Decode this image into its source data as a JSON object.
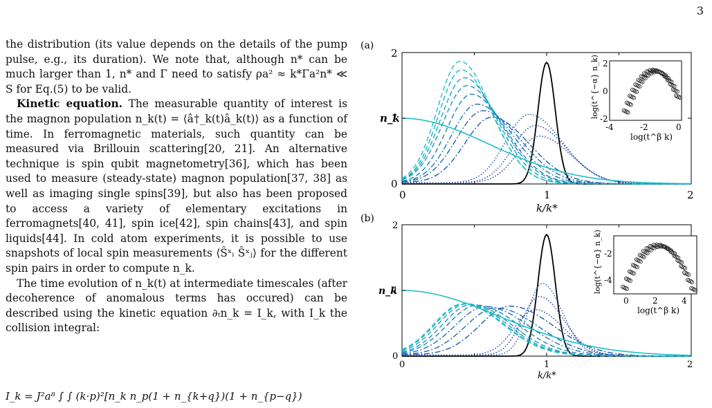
{
  "page_number": "3",
  "text": {
    "p1": "the distribution (its value depends on the details of the pump pulse, e.g., its duration). We note that, although n* can be much larger than 1, n* and Γ need to satisfy ρa² ≈ k*Γa²n* ≪ S for Eq.(5) to be valid.",
    "p2_head": "Kinetic equation.",
    "p2": " The measurable quantity of interest is the magnon population n_k(t) = ⟨â†_k(t)â_k(t)⟩ as a function of time. In ferromagnetic materials, such quantity can be measured via Brillouin scattering[20, 21]. An alternative technique is spin qubit magnetometry[36], which has been used to measure (steady-state) magnon population[37, 38] as well as imaging single spins[39], but also has been proposed to access a variety of elementary excitations in ferromagnets[40, 41], spin ice[42], spin chains[43], and spin liquids[44]. In cold atom experiments, it is possible to use snapshots of local spin measurements ⟨Ŝˣᵢ Ŝˣⱼ⟩ for the different spin pairs in order to compute n_k.",
    "p3": "The time evolution of n_k(t) at intermediate timescales (after decoherence of anomalous terms has occured) can be described using the kinetic equation ∂ₜn_k = I_k, with I_k the collision integral:",
    "eq": "I_k = J²a⁸ ∫ ∫ (k·p)²[n_k n_p(1 + n_{k+q})(1 + n_{p−q})"
  },
  "figure": {
    "panel_a": {
      "label": "(a)",
      "ylabel": "n_k",
      "xlabel": "k/k*",
      "xticks": [
        "0",
        "1",
        "2"
      ],
      "yticks": [
        "0",
        "1",
        "2"
      ],
      "inset": {
        "xlabel": "log(t^β k)",
        "ylabel": "log(t^{−α} n_k)",
        "xticks": [
          "-4",
          "-2",
          "0"
        ],
        "yticks": [
          "-2",
          "0",
          "2"
        ]
      }
    },
    "panel_b": {
      "label": "(b)",
      "ylabel": "n_k",
      "xlabel": "k/k*",
      "xticks": [
        "0",
        "1",
        "2"
      ],
      "yticks": [
        "0",
        "1",
        "2"
      ],
      "inset": {
        "xlabel": "log(t^β k)",
        "ylabel": "log(t^{−α} n_k)",
        "xticks": [
          "0",
          "2",
          "4"
        ],
        "yticks": [
          "-2",
          "-4"
        ]
      }
    }
  },
  "colors": {
    "initial": "#000000",
    "dark_blue": "#1f2f9f",
    "cyan": "#19c0c8"
  }
}
